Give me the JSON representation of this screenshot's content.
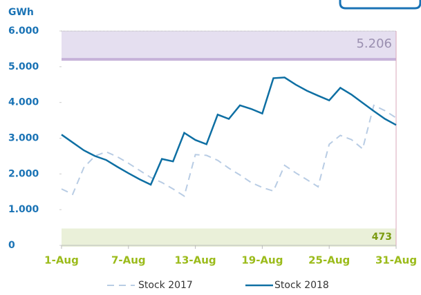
{
  "chart_data": {
    "type": "line",
    "y_axis_label": "GWh",
    "categories": [
      "1-Aug",
      null,
      null,
      null,
      null,
      null,
      "7-Aug",
      null,
      null,
      null,
      null,
      null,
      "13-Aug",
      null,
      null,
      null,
      null,
      null,
      "19-Aug",
      null,
      null,
      null,
      null,
      null,
      "25-Aug",
      null,
      null,
      null,
      null,
      null,
      "31-Aug"
    ],
    "series": [
      {
        "name": "Stock 2017",
        "color": "#b8cce4",
        "dashed": true,
        "values": [
          1580,
          1430,
          2180,
          2500,
          2620,
          2480,
          2300,
          2100,
          1900,
          1760,
          1580,
          1380,
          2540,
          2520,
          2380,
          2160,
          1970,
          1760,
          1620,
          1520,
          2240,
          2030,
          1840,
          1640,
          2830,
          3080,
          2960,
          2700,
          3920,
          3770,
          3570
        ]
      },
      {
        "name": "Stock 2018",
        "color": "#0e6fa3",
        "dashed": false,
        "values": [
          3100,
          2880,
          2660,
          2500,
          2390,
          2200,
          2020,
          1850,
          1700,
          2420,
          2350,
          3150,
          2950,
          2830,
          3660,
          3540,
          3920,
          3820,
          3690,
          4680,
          4700,
          4500,
          4330,
          4190,
          4060,
          4410,
          4220,
          3990,
          3760,
          3540,
          3370
        ]
      }
    ],
    "reference_bands": [
      {
        "from": 5206,
        "to": 6000,
        "label": "5.206",
        "color": "#e5dff0",
        "line_color": "#c6b2d9",
        "label_color": "#9a8fb0"
      },
      {
        "from": 0,
        "to": 473,
        "label": "473",
        "color": "#eaf0d9",
        "line_color": "#eaf0d9",
        "label_color": "#7a9a10"
      }
    ],
    "ylim": [
      0,
      6000
    ],
    "yticks": [
      0,
      {
        "value": 1000,
        "label": "1.000"
      },
      {
        "value": 2000,
        "label": "2.000"
      },
      {
        "value": 3000,
        "label": "3.000"
      },
      {
        "value": 4000,
        "label": "4.000"
      },
      {
        "value": 5000,
        "label": "5.000"
      },
      {
        "value": 6000,
        "label": "6.000"
      }
    ],
    "legend": "bottom"
  }
}
